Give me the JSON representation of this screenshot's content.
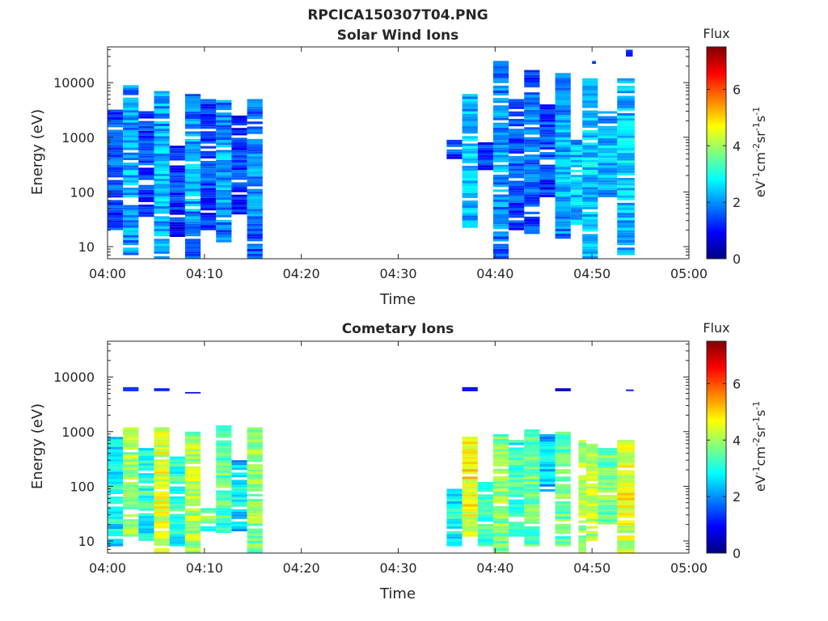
{
  "figure": {
    "title": "RPCICA150307T04.PNG"
  },
  "chart_data": [
    {
      "type": "heatmap",
      "title": "Solar Wind Ions",
      "xlabel": "Time",
      "ylabel": "Energy (eV)",
      "x_ticks": [
        "04:00",
        "04:10",
        "04:20",
        "04:30",
        "04:40",
        "04:50",
        "05:00"
      ],
      "x_range_minutes": [
        0,
        60
      ],
      "y_scale": "log",
      "y_ticks": [
        "10",
        "100",
        "1000",
        "10000"
      ],
      "y_range": [
        6,
        45000
      ],
      "colorbar": {
        "label": "Flux",
        "unit": "eV-1cm-2sr-1s-1",
        "range": [
          0,
          7.5
        ],
        "ticks": [
          "0",
          "2",
          "4",
          "6"
        ]
      },
      "bursts": [
        {
          "start": 0.0,
          "end": 1.6,
          "emin": 20,
          "emax": 3200,
          "level": 1.8
        },
        {
          "start": 1.6,
          "end": 3.2,
          "emin": 7,
          "emax": 9000,
          "level": 2.3
        },
        {
          "start": 3.2,
          "end": 4.8,
          "emin": 35,
          "emax": 3000,
          "level": 1.5
        },
        {
          "start": 4.8,
          "end": 6.4,
          "emin": 6,
          "emax": 7000,
          "level": 2.4
        },
        {
          "start": 6.4,
          "end": 8.0,
          "emin": 15,
          "emax": 700,
          "level": 1.4
        },
        {
          "start": 8.0,
          "end": 9.6,
          "emin": 6,
          "emax": 6200,
          "level": 2.2
        },
        {
          "start": 9.6,
          "end": 11.2,
          "emin": 20,
          "emax": 5000,
          "level": 1.6
        },
        {
          "start": 11.2,
          "end": 12.8,
          "emin": 12,
          "emax": 4800,
          "level": 2.2
        },
        {
          "start": 12.8,
          "end": 14.4,
          "emin": 35,
          "emax": 2500,
          "level": 1.4
        },
        {
          "start": 14.4,
          "end": 16.0,
          "emin": 6,
          "emax": 5000,
          "level": 2.0
        },
        {
          "start": 35.0,
          "end": 36.6,
          "emin": 400,
          "emax": 900,
          "level": 1.4
        },
        {
          "start": 36.6,
          "end": 38.2,
          "emin": 18,
          "emax": 6200,
          "level": 2.5
        },
        {
          "start": 38.2,
          "end": 39.8,
          "emin": 250,
          "emax": 900,
          "level": 1.5
        },
        {
          "start": 39.8,
          "end": 41.4,
          "emin": 6,
          "emax": 25000,
          "level": 2.1
        },
        {
          "start": 41.4,
          "end": 43.0,
          "emin": 20,
          "emax": 5000,
          "level": 1.7
        },
        {
          "start": 43.0,
          "end": 44.6,
          "emin": 17,
          "emax": 17000,
          "level": 1.9
        },
        {
          "start": 44.6,
          "end": 46.2,
          "emin": 80,
          "emax": 4000,
          "level": 1.6
        },
        {
          "start": 46.2,
          "end": 47.8,
          "emin": 14,
          "emax": 15000,
          "level": 2.3
        },
        {
          "start": 47.8,
          "end": 49.0,
          "emin": 25,
          "emax": 900,
          "level": 2.6
        },
        {
          "start": 49.0,
          "end": 50.6,
          "emin": 6,
          "emax": 12000,
          "level": 2.5
        },
        {
          "start": 50.6,
          "end": 52.6,
          "emin": 80,
          "emax": 3000,
          "level": 2.4
        },
        {
          "start": 52.6,
          "end": 54.4,
          "emin": 7,
          "emax": 12000,
          "level": 2.6
        },
        {
          "start": 53.5,
          "end": 54.2,
          "emin": 30000,
          "emax": 40000,
          "level": 1.2
        },
        {
          "start": 50.0,
          "end": 50.4,
          "emin": 22000,
          "emax": 28000,
          "level": 1.2
        }
      ]
    },
    {
      "type": "heatmap",
      "title": "Cometary Ions",
      "xlabel": "Time",
      "ylabel": "Energy (eV)",
      "x_ticks": [
        "04:00",
        "04:10",
        "04:20",
        "04:30",
        "04:40",
        "04:50",
        "05:00"
      ],
      "x_range_minutes": [
        0,
        60
      ],
      "y_scale": "log",
      "y_ticks": [
        "10",
        "100",
        "1000",
        "10000"
      ],
      "y_range": [
        6,
        45000
      ],
      "colorbar": {
        "label": "Flux",
        "unit": "eV-1cm-2sr-1s-1",
        "range": [
          0,
          7.5
        ],
        "ticks": [
          "0",
          "2",
          "4",
          "6"
        ]
      },
      "bursts": [
        {
          "start": 0.0,
          "end": 1.6,
          "emin": 8,
          "emax": 800,
          "level": 3.0
        },
        {
          "start": 1.6,
          "end": 3.2,
          "emin": 12,
          "emax": 1200,
          "level": 4.2
        },
        {
          "start": 3.2,
          "end": 4.8,
          "emin": 10,
          "emax": 500,
          "level": 3.2
        },
        {
          "start": 4.8,
          "end": 6.4,
          "emin": 6,
          "emax": 1200,
          "level": 4.6
        },
        {
          "start": 6.4,
          "end": 8.0,
          "emin": 8,
          "emax": 350,
          "level": 3.3
        },
        {
          "start": 8.0,
          "end": 9.6,
          "emin": 6,
          "emax": 1000,
          "level": 4.3
        },
        {
          "start": 9.6,
          "end": 11.2,
          "emin": 15,
          "emax": 40,
          "level": 3.6
        },
        {
          "start": 11.2,
          "end": 12.8,
          "emin": 14,
          "emax": 1300,
          "level": 3.6
        },
        {
          "start": 12.8,
          "end": 14.4,
          "emin": 15,
          "emax": 300,
          "level": 2.8
        },
        {
          "start": 14.4,
          "end": 16.0,
          "emin": 6,
          "emax": 1200,
          "level": 4.0
        },
        {
          "start": 35.0,
          "end": 36.6,
          "emin": 8,
          "emax": 90,
          "level": 3.0
        },
        {
          "start": 36.6,
          "end": 38.2,
          "emin": 12,
          "emax": 900,
          "level": 4.8
        },
        {
          "start": 38.2,
          "end": 39.8,
          "emin": 8,
          "emax": 120,
          "level": 3.4
        },
        {
          "start": 39.8,
          "end": 41.4,
          "emin": 6,
          "emax": 900,
          "level": 4.0
        },
        {
          "start": 41.4,
          "end": 43.0,
          "emin": 12,
          "emax": 700,
          "level": 3.4
        },
        {
          "start": 43.0,
          "end": 44.6,
          "emin": 8,
          "emax": 1100,
          "level": 3.7
        },
        {
          "start": 44.6,
          "end": 46.2,
          "emin": 80,
          "emax": 900,
          "level": 2.6
        },
        {
          "start": 46.2,
          "end": 47.8,
          "emin": 8,
          "emax": 1000,
          "level": 3.8
        },
        {
          "start": 48.6,
          "end": 49.4,
          "emin": 6,
          "emax": 700,
          "level": 4.3
        },
        {
          "start": 49.4,
          "end": 50.6,
          "emin": 10,
          "emax": 600,
          "level": 4.4
        },
        {
          "start": 50.6,
          "end": 52.6,
          "emin": 20,
          "emax": 500,
          "level": 3.8
        },
        {
          "start": 52.6,
          "end": 54.4,
          "emin": 6,
          "emax": 700,
          "level": 4.6
        },
        {
          "start": 1.6,
          "end": 3.2,
          "emin": 5500,
          "emax": 6500,
          "level": 1.2
        },
        {
          "start": 4.8,
          "end": 6.4,
          "emin": 5500,
          "emax": 7000,
          "level": 1.0
        },
        {
          "start": 8.0,
          "end": 9.6,
          "emin": 5000,
          "emax": 5600,
          "level": 1.0
        },
        {
          "start": 36.6,
          "end": 38.2,
          "emin": 5500,
          "emax": 6500,
          "level": 1.0
        },
        {
          "start": 46.2,
          "end": 47.8,
          "emin": 5500,
          "emax": 6200,
          "level": 1.0
        },
        {
          "start": 53.5,
          "end": 54.3,
          "emin": 5500,
          "emax": 6300,
          "level": 1.2
        }
      ]
    }
  ]
}
